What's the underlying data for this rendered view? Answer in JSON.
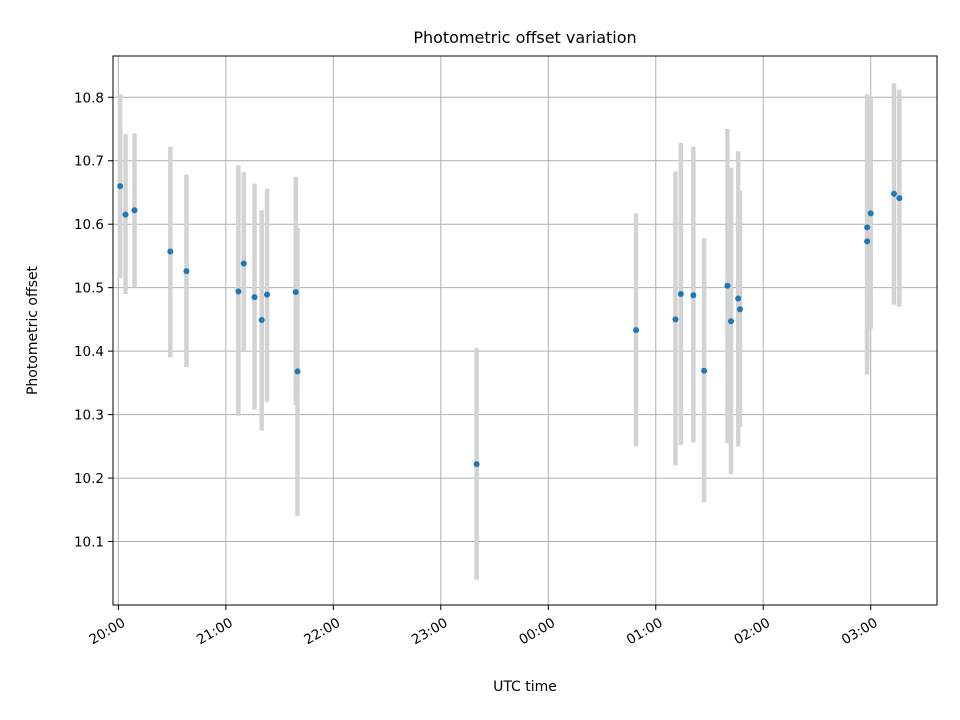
{
  "chart_data": {
    "type": "scatter",
    "title": "Photometric offset variation",
    "xlabel": "UTC time",
    "ylabel": "Photometric offset",
    "x_ticks": [
      "20:00",
      "21:00",
      "22:00",
      "23:00",
      "00:00",
      "01:00",
      "02:00",
      "03:00"
    ],
    "y_ticks": [
      "10.1",
      "10.2",
      "10.3",
      "10.4",
      "10.5",
      "10.6",
      "10.7",
      "10.8"
    ],
    "xlim": [
      "19:57",
      "03:37"
    ],
    "ylim": [
      10.0,
      10.865
    ],
    "grid": true,
    "colors": {
      "point": "#1f77b4",
      "errorbar": "#d3d3d3",
      "grid": "#b0b0b0"
    },
    "points": [
      {
        "x": "20:01",
        "y": 10.66,
        "err_low": 10.515,
        "err_high": 10.805
      },
      {
        "x": "20:04",
        "y": 10.615,
        "err_low": 10.49,
        "err_high": 10.742
      },
      {
        "x": "20:09",
        "y": 10.622,
        "err_low": 10.5,
        "err_high": 10.743
      },
      {
        "x": "20:29",
        "y": 10.557,
        "err_low": 10.39,
        "err_high": 10.722
      },
      {
        "x": "20:38",
        "y": 10.526,
        "err_low": 10.375,
        "err_high": 10.678
      },
      {
        "x": "21:07",
        "y": 10.494,
        "err_low": 10.298,
        "err_high": 10.693
      },
      {
        "x": "21:10",
        "y": 10.538,
        "err_low": 10.4,
        "err_high": 10.682
      },
      {
        "x": "21:16",
        "y": 10.485,
        "err_low": 10.308,
        "err_high": 10.664
      },
      {
        "x": "21:20",
        "y": 10.449,
        "err_low": 10.275,
        "err_high": 10.622
      },
      {
        "x": "21:23",
        "y": 10.489,
        "err_low": 10.32,
        "err_high": 10.656
      },
      {
        "x": "21:39",
        "y": 10.493,
        "err_low": 10.315,
        "err_high": 10.675
      },
      {
        "x": "21:40",
        "y": 10.368,
        "err_low": 10.14,
        "err_high": 10.595
      },
      {
        "x": "23:20",
        "y": 10.222,
        "err_low": 10.04,
        "err_high": 10.405
      },
      {
        "x": "00:49",
        "y": 10.433,
        "err_low": 10.25,
        "err_high": 10.617
      },
      {
        "x": "01:11",
        "y": 10.45,
        "err_low": 10.22,
        "err_high": 10.683
      },
      {
        "x": "01:14",
        "y": 10.49,
        "err_low": 10.252,
        "err_high": 10.728
      },
      {
        "x": "01:21",
        "y": 10.488,
        "err_low": 10.256,
        "err_high": 10.722
      },
      {
        "x": "01:27",
        "y": 10.369,
        "err_low": 10.162,
        "err_high": 10.578
      },
      {
        "x": "01:40",
        "y": 10.503,
        "err_low": 10.255,
        "err_high": 10.75
      },
      {
        "x": "01:42",
        "y": 10.447,
        "err_low": 10.206,
        "err_high": 10.689
      },
      {
        "x": "01:46",
        "y": 10.483,
        "err_low": 10.25,
        "err_high": 10.715
      },
      {
        "x": "01:47",
        "y": 10.466,
        "err_low": 10.28,
        "err_high": 10.652
      },
      {
        "x": "02:58",
        "y": 10.595,
        "err_low": 10.385,
        "err_high": 10.805
      },
      {
        "x": "02:58",
        "y": 10.573,
        "err_low": 10.363,
        "err_high": 10.783
      },
      {
        "x": "03:00",
        "y": 10.617,
        "err_low": 10.435,
        "err_high": 10.8
      },
      {
        "x": "03:13",
        "y": 10.648,
        "err_low": 10.473,
        "err_high": 10.822
      },
      {
        "x": "03:16",
        "y": 10.641,
        "err_low": 10.47,
        "err_high": 10.812
      }
    ]
  }
}
